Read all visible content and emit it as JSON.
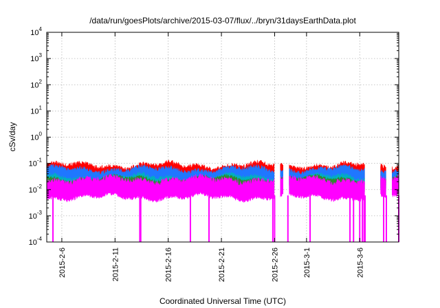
{
  "chart_data": {
    "type": "line",
    "title": "/data/run/goesPlots/archive/2015-03-07/flux/../bryn/31daysEarthData.plot",
    "xlabel": "Coordinated Universal Time (UTC)",
    "ylabel": "cSv/day",
    "yscale": "log",
    "ylim": [
      0.0001,
      10000
    ],
    "xlim": [
      "2015-02-04T14:00",
      "2015-03-09T16:00"
    ],
    "grid": true,
    "legend": "none",
    "y_ticks": [
      {
        "base": "10",
        "exp": "-4",
        "value": 0.0001
      },
      {
        "base": "10",
        "exp": "-3",
        "value": 0.001
      },
      {
        "base": "10",
        "exp": "-2",
        "value": 0.01
      },
      {
        "base": "10",
        "exp": "-1",
        "value": 0.1
      },
      {
        "base": "10",
        "exp": "0",
        "value": 1
      },
      {
        "base": "10",
        "exp": "1",
        "value": 10
      },
      {
        "base": "10",
        "exp": "2",
        "value": 100
      },
      {
        "base": "10",
        "exp": "3",
        "value": 1000
      },
      {
        "base": "10",
        "exp": "4",
        "value": 10000
      }
    ],
    "x_ticks": [
      {
        "label": "2015-2-6",
        "date": "2015-02-06"
      },
      {
        "label": "2015-2-11",
        "date": "2015-02-11"
      },
      {
        "label": "2015-2-16",
        "date": "2015-02-16"
      },
      {
        "label": "2015-2-21",
        "date": "2015-02-21"
      },
      {
        "label": "2015-2-26",
        "date": "2015-02-26"
      },
      {
        "label": "2015-3-1",
        "date": "2015-03-01"
      },
      {
        "label": "2015-3-6",
        "date": "2015-03-06"
      }
    ],
    "series": [
      {
        "color": "#ff0000",
        "typical_range": [
          0.02,
          0.1
        ]
      },
      {
        "color": "#1f77ff",
        "typical_range": [
          0.015,
          0.07
        ]
      },
      {
        "color": "#00b0c0",
        "typical_range": [
          0.01,
          0.035
        ]
      },
      {
        "color": "#2e8b2e",
        "typical_range": [
          0.01,
          0.03
        ]
      },
      {
        "color": "#ff00ff",
        "typical_range": [
          0.004,
          0.03
        ]
      }
    ],
    "data_gaps": [
      {
        "start": "2015-02-26T00:00",
        "end": "2015-02-26T12:00"
      },
      {
        "start": "2015-02-26T20:00",
        "end": "2015-02-27T08:00"
      },
      {
        "start": "2015-03-06T12:00",
        "end": "2015-03-07T22:00"
      },
      {
        "start": "2015-03-08T12:00",
        "end": "2015-03-09T00:00"
      }
    ],
    "dropouts_to_floor": [
      "2015-02-05T04:00",
      "2015-02-13T08:00",
      "2015-02-13T10:00",
      "2015-02-18T02:00",
      "2015-02-19T20:00",
      "2015-02-25T20:00",
      "2015-02-26T00:00",
      "2015-02-27T06:00",
      "2015-03-01T08:00",
      "2015-03-05T02:00",
      "2015-03-05T10:00",
      "2015-03-06T00:00",
      "2015-03-06T06:00",
      "2015-03-06T10:00",
      "2015-03-06T12:00",
      "2015-03-08T06:00",
      "2015-03-08T12:00",
      "2015-03-09T16:00"
    ]
  }
}
